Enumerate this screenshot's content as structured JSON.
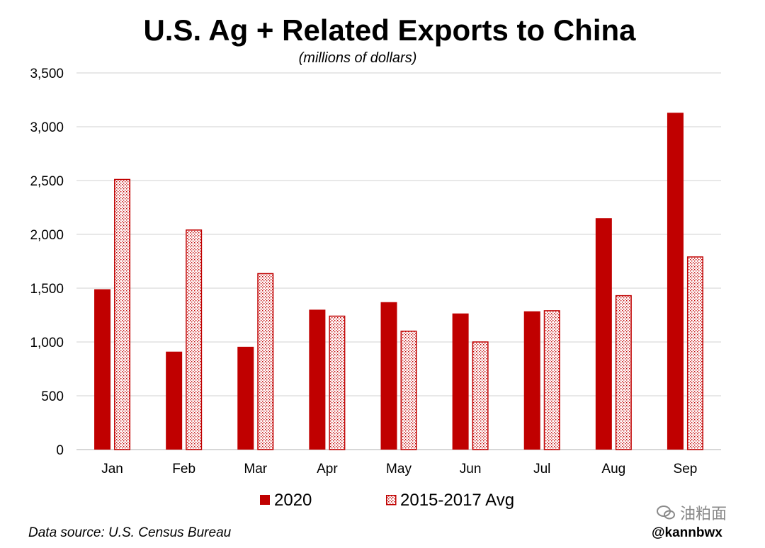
{
  "chart_data": {
    "type": "bar",
    "title": "U.S. Ag + Related Exports to China",
    "subtitle": "(millions of dollars)",
    "categories": [
      "Jan",
      "Feb",
      "Mar",
      "Apr",
      "May",
      "Jun",
      "Jul",
      "Aug",
      "Sep"
    ],
    "series": [
      {
        "name": "2020",
        "values": [
          1490,
          910,
          955,
          1300,
          1370,
          1265,
          1285,
          2150,
          3130
        ],
        "color": "#c00000",
        "style": "solid"
      },
      {
        "name": "2015-2017 Avg",
        "values": [
          2515,
          2045,
          1640,
          1245,
          1105,
          1005,
          1295,
          1435,
          1795
        ],
        "color": "#c00000",
        "style": "dotted"
      }
    ],
    "yticks": [
      "0",
      "500",
      "1,000",
      "1,500",
      "2,000",
      "2,500",
      "3,000",
      "3,500"
    ],
    "ylim": [
      0,
      3500
    ],
    "grid": true,
    "legend": "bottom-center"
  },
  "footer": {
    "source": "Data source: U.S. Census Bureau",
    "handle": "@kannbwx"
  },
  "watermark": {
    "text": "油粕面"
  }
}
